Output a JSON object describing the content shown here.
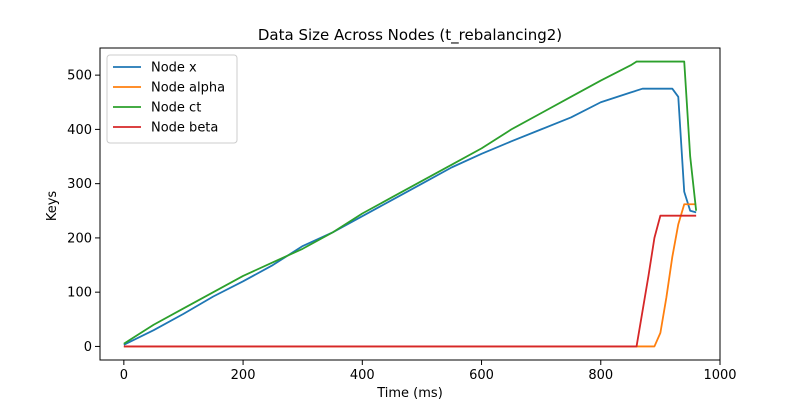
{
  "chart_data": {
    "type": "line",
    "title": "Data Size Across Nodes (t_rebalancing2)",
    "xlabel": "Time (ms)",
    "ylabel": "Keys",
    "xlim": [
      -40,
      1000
    ],
    "ylim": [
      -25,
      550
    ],
    "xticks": [
      0,
      200,
      400,
      600,
      800,
      1000
    ],
    "yticks": [
      0,
      100,
      200,
      300,
      400,
      500
    ],
    "grid": false,
    "legend_position": "upper-left",
    "series": [
      {
        "name": "Node x",
        "color": "#1f77b4",
        "points": [
          [
            0,
            3
          ],
          [
            50,
            30
          ],
          [
            100,
            60
          ],
          [
            150,
            92
          ],
          [
            200,
            120
          ],
          [
            250,
            150
          ],
          [
            300,
            185
          ],
          [
            350,
            210
          ],
          [
            400,
            240
          ],
          [
            450,
            270
          ],
          [
            500,
            300
          ],
          [
            550,
            330
          ],
          [
            600,
            355
          ],
          [
            650,
            378
          ],
          [
            700,
            400
          ],
          [
            750,
            422
          ],
          [
            800,
            450
          ],
          [
            850,
            468
          ],
          [
            870,
            475
          ],
          [
            920,
            475
          ],
          [
            930,
            460
          ],
          [
            940,
            285
          ],
          [
            950,
            250
          ],
          [
            960,
            247
          ]
        ]
      },
      {
        "name": "Node alpha",
        "color": "#ff7f0e",
        "points": [
          [
            0,
            0
          ],
          [
            890,
            0
          ],
          [
            900,
            25
          ],
          [
            910,
            90
          ],
          [
            920,
            165
          ],
          [
            930,
            225
          ],
          [
            940,
            262
          ],
          [
            960,
            262
          ]
        ]
      },
      {
        "name": "Node ct",
        "color": "#2ca02c",
        "points": [
          [
            0,
            5
          ],
          [
            50,
            40
          ],
          [
            100,
            70
          ],
          [
            150,
            100
          ],
          [
            200,
            130
          ],
          [
            250,
            155
          ],
          [
            300,
            180
          ],
          [
            350,
            210
          ],
          [
            400,
            245
          ],
          [
            450,
            275
          ],
          [
            500,
            305
          ],
          [
            550,
            335
          ],
          [
            600,
            365
          ],
          [
            650,
            400
          ],
          [
            700,
            430
          ],
          [
            750,
            460
          ],
          [
            800,
            490
          ],
          [
            850,
            518
          ],
          [
            860,
            525
          ],
          [
            940,
            525
          ],
          [
            950,
            350
          ],
          [
            960,
            250
          ]
        ]
      },
      {
        "name": "Node beta",
        "color": "#d62728",
        "points": [
          [
            0,
            0
          ],
          [
            860,
            0
          ],
          [
            870,
            65
          ],
          [
            880,
            130
          ],
          [
            890,
            200
          ],
          [
            900,
            241
          ],
          [
            960,
            241
          ]
        ]
      }
    ]
  }
}
